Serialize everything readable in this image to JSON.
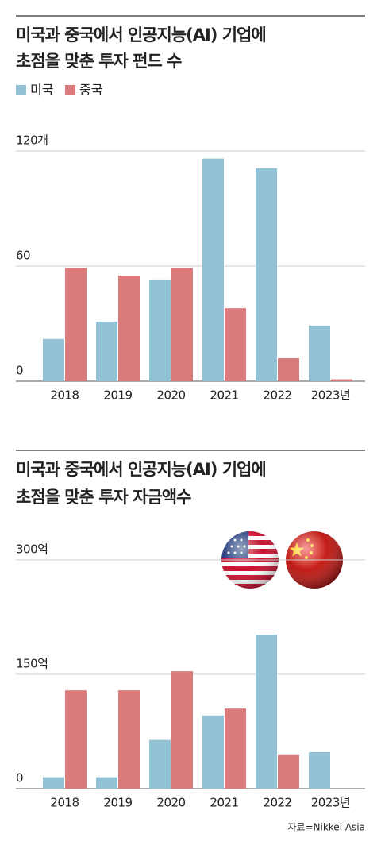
{
  "chart_data": [
    {
      "type": "bar",
      "title": [
        "미국과 중국에서 인공지능(AI) 기업에",
        "초점을 맞춘 투자 펀드 수"
      ],
      "categories": [
        "2018",
        "2019",
        "2020",
        "2021",
        "2022",
        "2023년"
      ],
      "series": [
        {
          "name": "미국",
          "color": "#93c1d6",
          "values": [
            22,
            31,
            53,
            116,
            111,
            29
          ]
        },
        {
          "name": "중국",
          "color": "#dc7b7b",
          "values": [
            59,
            55,
            59,
            38,
            12,
            1
          ]
        }
      ],
      "ylim": [
        0,
        120
      ],
      "yticks": [
        0,
        60,
        {
          "value": 120,
          "label": "120개"
        }
      ],
      "grid": true,
      "legend": "top-left"
    },
    {
      "type": "bar",
      "title": [
        "미국과 중국에서 인공지능(AI) 기업에",
        "초점을 맞춘 투자 자금액수"
      ],
      "categories": [
        "2018",
        "2019",
        "2020",
        "2021",
        "2022",
        "2023년"
      ],
      "series": [
        {
          "color": "#93c1d6",
          "values": [
            15,
            15,
            64,
            96,
            202,
            48
          ]
        },
        {
          "color": "#dc7b7b",
          "values": [
            129,
            129,
            154,
            105,
            44,
            null
          ]
        }
      ],
      "ylim": [
        0,
        300
      ],
      "yticks": [
        0,
        {
          "value": 150,
          "label": "150억"
        },
        {
          "value": 300,
          "label": "300억"
        }
      ],
      "grid": true,
      "legend": "none"
    }
  ],
  "source": "자료=Nikkei Asia"
}
